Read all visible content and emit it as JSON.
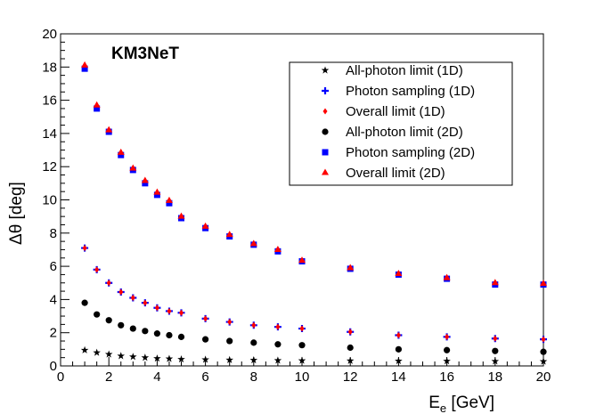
{
  "chart_data": {
    "type": "scatter",
    "title": "",
    "annotation": "KM3NeT",
    "xlabel": "E",
    "xlabel_sub": "e",
    "xlabel_unit": " [GeV]",
    "ylabel": "Δθ [deg]",
    "xlim": [
      0,
      20
    ],
    "ylim": [
      0,
      20
    ],
    "xticks": [
      0,
      2,
      4,
      6,
      8,
      10,
      12,
      14,
      16,
      18,
      20
    ],
    "yticks": [
      0,
      2,
      4,
      6,
      8,
      10,
      12,
      14,
      16,
      18,
      20
    ],
    "legend_position": "top-right",
    "x": [
      1,
      1.5,
      2,
      2.5,
      3,
      3.5,
      4,
      4.5,
      5,
      6,
      7,
      8,
      9,
      10,
      12,
      14,
      16,
      18,
      20
    ],
    "series": [
      {
        "name": "All-photon limit (1D)",
        "marker": "star",
        "color": "#000000",
        "values": [
          0.95,
          0.8,
          0.7,
          0.6,
          0.55,
          0.5,
          0.45,
          0.43,
          0.4,
          0.38,
          0.36,
          0.35,
          0.33,
          0.32,
          0.31,
          0.3,
          0.29,
          0.28,
          0.27
        ]
      },
      {
        "name": "Photon sampling (1D)",
        "marker": "plus",
        "color": "#0000ff",
        "values": [
          7.1,
          5.8,
          5.0,
          4.45,
          4.1,
          3.8,
          3.5,
          3.3,
          3.2,
          2.85,
          2.65,
          2.45,
          2.35,
          2.25,
          2.05,
          1.85,
          1.75,
          1.65,
          1.6
        ]
      },
      {
        "name": "Overall limit (1D)",
        "marker": "diamond",
        "color": "#ff0000",
        "values": [
          7.1,
          5.8,
          5.0,
          4.45,
          4.1,
          3.8,
          3.5,
          3.3,
          3.2,
          2.85,
          2.65,
          2.45,
          2.35,
          2.25,
          2.05,
          1.85,
          1.75,
          1.65,
          1.6
        ]
      },
      {
        "name": "All-photon limit (2D)",
        "marker": "circle",
        "color": "#000000",
        "values": [
          3.8,
          3.1,
          2.75,
          2.45,
          2.25,
          2.1,
          1.95,
          1.85,
          1.75,
          1.6,
          1.5,
          1.4,
          1.3,
          1.25,
          1.1,
          1.0,
          0.95,
          0.9,
          0.85
        ]
      },
      {
        "name": "Photon sampling (2D)",
        "marker": "square",
        "color": "#0000ff",
        "values": [
          17.9,
          15.5,
          14.1,
          12.7,
          11.8,
          11.0,
          10.3,
          9.8,
          8.9,
          8.3,
          7.8,
          7.3,
          6.9,
          6.3,
          5.85,
          5.5,
          5.25,
          4.9,
          4.9
        ]
      },
      {
        "name": "Overall limit (2D)",
        "marker": "triangle",
        "color": "#ff0000",
        "values": [
          18.1,
          15.7,
          14.2,
          12.85,
          11.9,
          11.15,
          10.45,
          9.95,
          9.0,
          8.4,
          7.9,
          7.35,
          7.0,
          6.35,
          5.9,
          5.55,
          5.3,
          5.0,
          4.95
        ]
      }
    ]
  }
}
